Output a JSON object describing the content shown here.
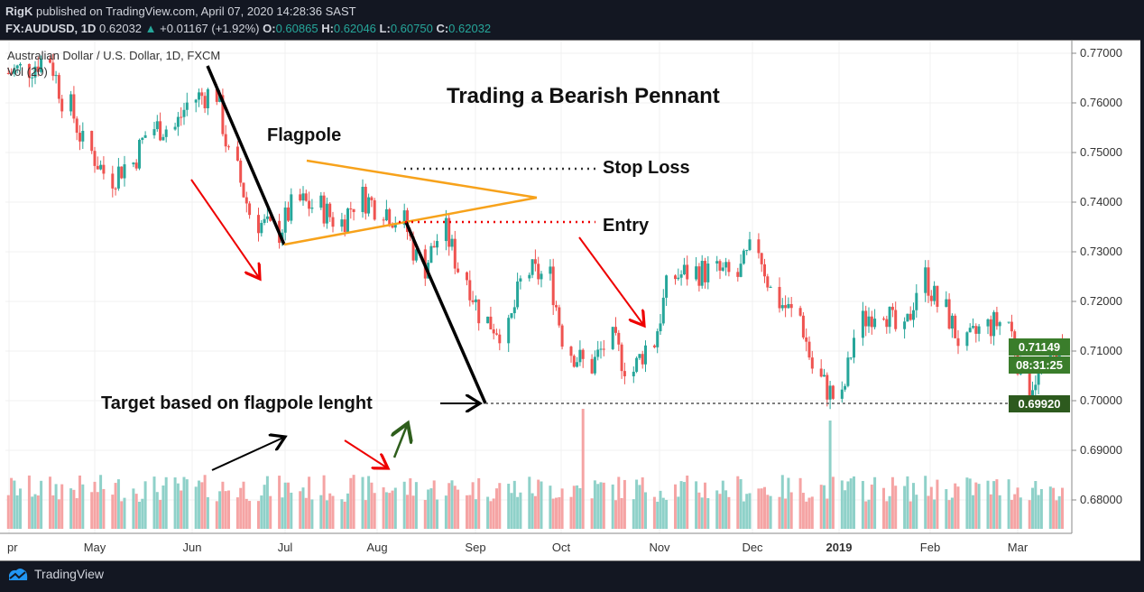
{
  "header": {
    "publisher": "RigK",
    "published_text": "published on TradingView.com, April 07, 2020 14:28:36 SAST",
    "symbol": "FX:AUDUSD, 1D",
    "last": "0.62032",
    "change": "+0.01167 (+1.92%)",
    "o_label": "O:",
    "o": "0.60865",
    "h_label": "H:",
    "h": "0.62046",
    "l_label": "L:",
    "l": "0.60750",
    "c_label": "C:",
    "c": "0.62032"
  },
  "legend": {
    "series": "Australian Dollar / U.S. Dollar, 1D, FXCM",
    "volume": "Vol (20)"
  },
  "annotations": {
    "title": "Trading a Bearish Pennant",
    "flagpole": "Flagpole",
    "stop_loss": "Stop Loss",
    "entry": "Entry",
    "target": "Target based on flagpole lenght"
  },
  "price_tags": {
    "last": "0.71149",
    "countdown": "08:31:25",
    "target": "0.69920"
  },
  "footer": {
    "brand": "TradingView"
  },
  "colors": {
    "up": "#26a69a",
    "down": "#ef5350",
    "vol_up": "#8fd1c9",
    "vol_down": "#f5a4a4",
    "pennant": "#f7a21b",
    "last_tag": "#3a7d2b",
    "target_tag": "#2d5a1e"
  },
  "chart_data": {
    "type": "candlestick",
    "ylim": [
      0.675,
      0.775
    ],
    "yticks": [
      "0.77000",
      "0.76000",
      "0.75000",
      "0.74000",
      "0.73000",
      "0.72000",
      "0.71000",
      "0.70000",
      "0.69000",
      "0.68000"
    ],
    "xticks": [
      "Apr",
      "May",
      "Jun",
      "Jul",
      "Aug",
      "Sep",
      "Oct",
      "Nov",
      "Dec",
      "2019",
      "Feb",
      "Mar"
    ],
    "weekly_close": {
      "dates": [
        "2018-04-02",
        "2018-04-09",
        "2018-04-16",
        "2018-04-23",
        "2018-04-30",
        "2018-05-07",
        "2018-05-14",
        "2018-05-21",
        "2018-05-28",
        "2018-06-04",
        "2018-06-11",
        "2018-06-18",
        "2018-06-25",
        "2018-07-02",
        "2018-07-09",
        "2018-07-16",
        "2018-07-23",
        "2018-07-30",
        "2018-08-06",
        "2018-08-13",
        "2018-08-20",
        "2018-08-27",
        "2018-09-03",
        "2018-09-10",
        "2018-09-17",
        "2018-09-24",
        "2018-10-01",
        "2018-10-08",
        "2018-10-15",
        "2018-10-22",
        "2018-10-29",
        "2018-11-05",
        "2018-11-12",
        "2018-11-19",
        "2018-11-26",
        "2018-12-03",
        "2018-12-10",
        "2018-12-17",
        "2018-12-24",
        "2018-12-31",
        "2019-01-07",
        "2019-01-14",
        "2019-01-21",
        "2019-01-28",
        "2019-02-04",
        "2019-02-11",
        "2019-02-18",
        "2019-02-25",
        "2019-03-04",
        "2019-03-11",
        "2019-03-18",
        "2019-03-25"
      ],
      "values": [
        0.766,
        0.767,
        0.769,
        0.759,
        0.75,
        0.745,
        0.748,
        0.755,
        0.755,
        0.761,
        0.762,
        0.746,
        0.736,
        0.734,
        0.74,
        0.739,
        0.736,
        0.741,
        0.739,
        0.736,
        0.727,
        0.734,
        0.725,
        0.716,
        0.714,
        0.726,
        0.725,
        0.71,
        0.707,
        0.712,
        0.706,
        0.712,
        0.725,
        0.726,
        0.726,
        0.725,
        0.731,
        0.72,
        0.717,
        0.704,
        0.7,
        0.716,
        0.719,
        0.713,
        0.725,
        0.718,
        0.711,
        0.715,
        0.716,
        0.703,
        0.708,
        0.711
      ]
    },
    "target_level": 0.6992,
    "last_price": 0.71149
  }
}
